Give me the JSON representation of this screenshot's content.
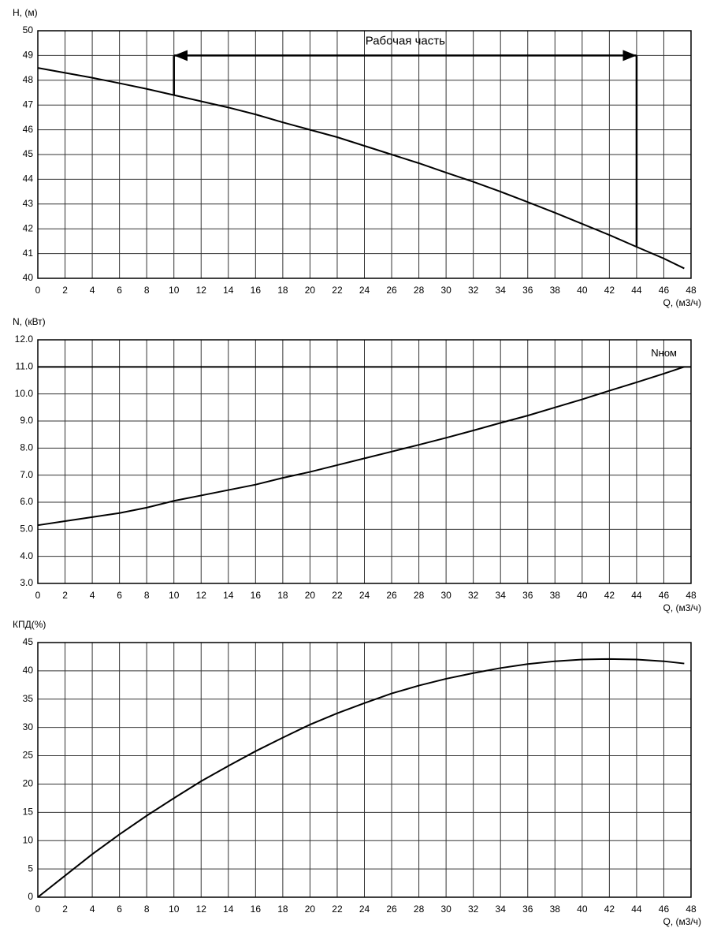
{
  "chart_data": [
    {
      "type": "line",
      "ylabel": "H, (м)",
      "xlabel": "Q, (м3/ч)",
      "xlim": [
        0,
        48
      ],
      "xticks": [
        0,
        2,
        4,
        6,
        8,
        10,
        12,
        14,
        16,
        18,
        20,
        22,
        24,
        26,
        28,
        30,
        32,
        34,
        36,
        38,
        40,
        42,
        44,
        46,
        48
      ],
      "ylim": [
        40,
        50
      ],
      "yticks": [
        40,
        41,
        42,
        43,
        44,
        45,
        46,
        47,
        48,
        49,
        50
      ],
      "grid": true,
      "x": [
        0,
        2,
        4,
        6,
        8,
        10,
        12,
        14,
        16,
        18,
        20,
        22,
        24,
        26,
        28,
        30,
        32,
        34,
        36,
        38,
        40,
        42,
        44,
        46,
        47.5
      ],
      "series": [
        {
          "color": "#000000",
          "values": [
            48.5,
            48.3,
            48.1,
            47.88,
            47.65,
            47.4,
            47.15,
            46.9,
            46.62,
            46.3,
            46.0,
            45.7,
            45.35,
            45.0,
            44.65,
            44.27,
            43.9,
            43.5,
            43.08,
            42.65,
            42.2,
            41.75,
            41.27,
            40.8,
            40.4
          ]
        }
      ],
      "annotation": {
        "text": "Рабочая часть",
        "x": [
          10,
          44
        ],
        "y": 49
      }
    },
    {
      "type": "line",
      "ylabel": "N, (кВт)",
      "xlabel": "Q, (м3/ч)",
      "xlim": [
        0,
        48
      ],
      "xticks": [
        0,
        2,
        4,
        6,
        8,
        10,
        12,
        14,
        16,
        18,
        20,
        22,
        24,
        26,
        28,
        30,
        32,
        34,
        36,
        38,
        40,
        42,
        44,
        46,
        48
      ],
      "ylim": [
        3,
        12
      ],
      "yticks": [
        {
          "value": 3,
          "label": "3.0"
        },
        {
          "value": 4,
          "label": "4.0"
        },
        {
          "value": 5,
          "label": "5.0"
        },
        {
          "value": 6,
          "label": "6.0"
        },
        {
          "value": 7,
          "label": "7.0"
        },
        {
          "value": 8,
          "label": "8.0"
        },
        {
          "value": 9,
          "label": "9.0"
        },
        {
          "value": 10,
          "label": "10.0"
        },
        {
          "value": 11,
          "label": "11.0"
        },
        {
          "value": 12,
          "label": "12.0"
        }
      ],
      "grid": true,
      "x": [
        0,
        2,
        4,
        6,
        8,
        10,
        12,
        14,
        16,
        18,
        20,
        22,
        24,
        26,
        28,
        30,
        32,
        34,
        36,
        38,
        40,
        42,
        44,
        46,
        47.5
      ],
      "series": [
        {
          "color": "#000000",
          "values": [
            5.15,
            5.3,
            5.45,
            5.6,
            5.8,
            6.05,
            6.25,
            6.45,
            6.65,
            6.9,
            7.12,
            7.37,
            7.62,
            7.87,
            8.12,
            8.38,
            8.65,
            8.93,
            9.2,
            9.5,
            9.8,
            10.12,
            10.43,
            10.75,
            11.0
          ]
        }
      ],
      "reference_line": {
        "label": "Nном",
        "value": 11
      }
    },
    {
      "type": "line",
      "ylabel": "КПД(%)",
      "xlabel": "Q, (м3/ч)",
      "xlim": [
        0,
        48
      ],
      "xticks": [
        0,
        2,
        4,
        6,
        8,
        10,
        12,
        14,
        16,
        18,
        20,
        22,
        24,
        26,
        28,
        30,
        32,
        34,
        36,
        38,
        40,
        42,
        44,
        46,
        48
      ],
      "ylim": [
        0,
        45
      ],
      "yticks": [
        0,
        5,
        10,
        15,
        20,
        25,
        30,
        35,
        40,
        45
      ],
      "grid": true,
      "x": [
        0,
        2,
        4,
        6,
        8,
        10,
        12,
        14,
        16,
        18,
        20,
        22,
        24,
        26,
        28,
        30,
        32,
        34,
        36,
        38,
        40,
        42,
        44,
        46,
        47.5
      ],
      "series": [
        {
          "color": "#000000",
          "values": [
            0,
            3.8,
            7.6,
            11.1,
            14.4,
            17.5,
            20.5,
            23.2,
            25.8,
            28.2,
            30.5,
            32.5,
            34.3,
            36.0,
            37.4,
            38.6,
            39.6,
            40.5,
            41.2,
            41.7,
            42.0,
            42.1,
            42.0,
            41.7,
            41.3
          ]
        }
      ]
    }
  ]
}
